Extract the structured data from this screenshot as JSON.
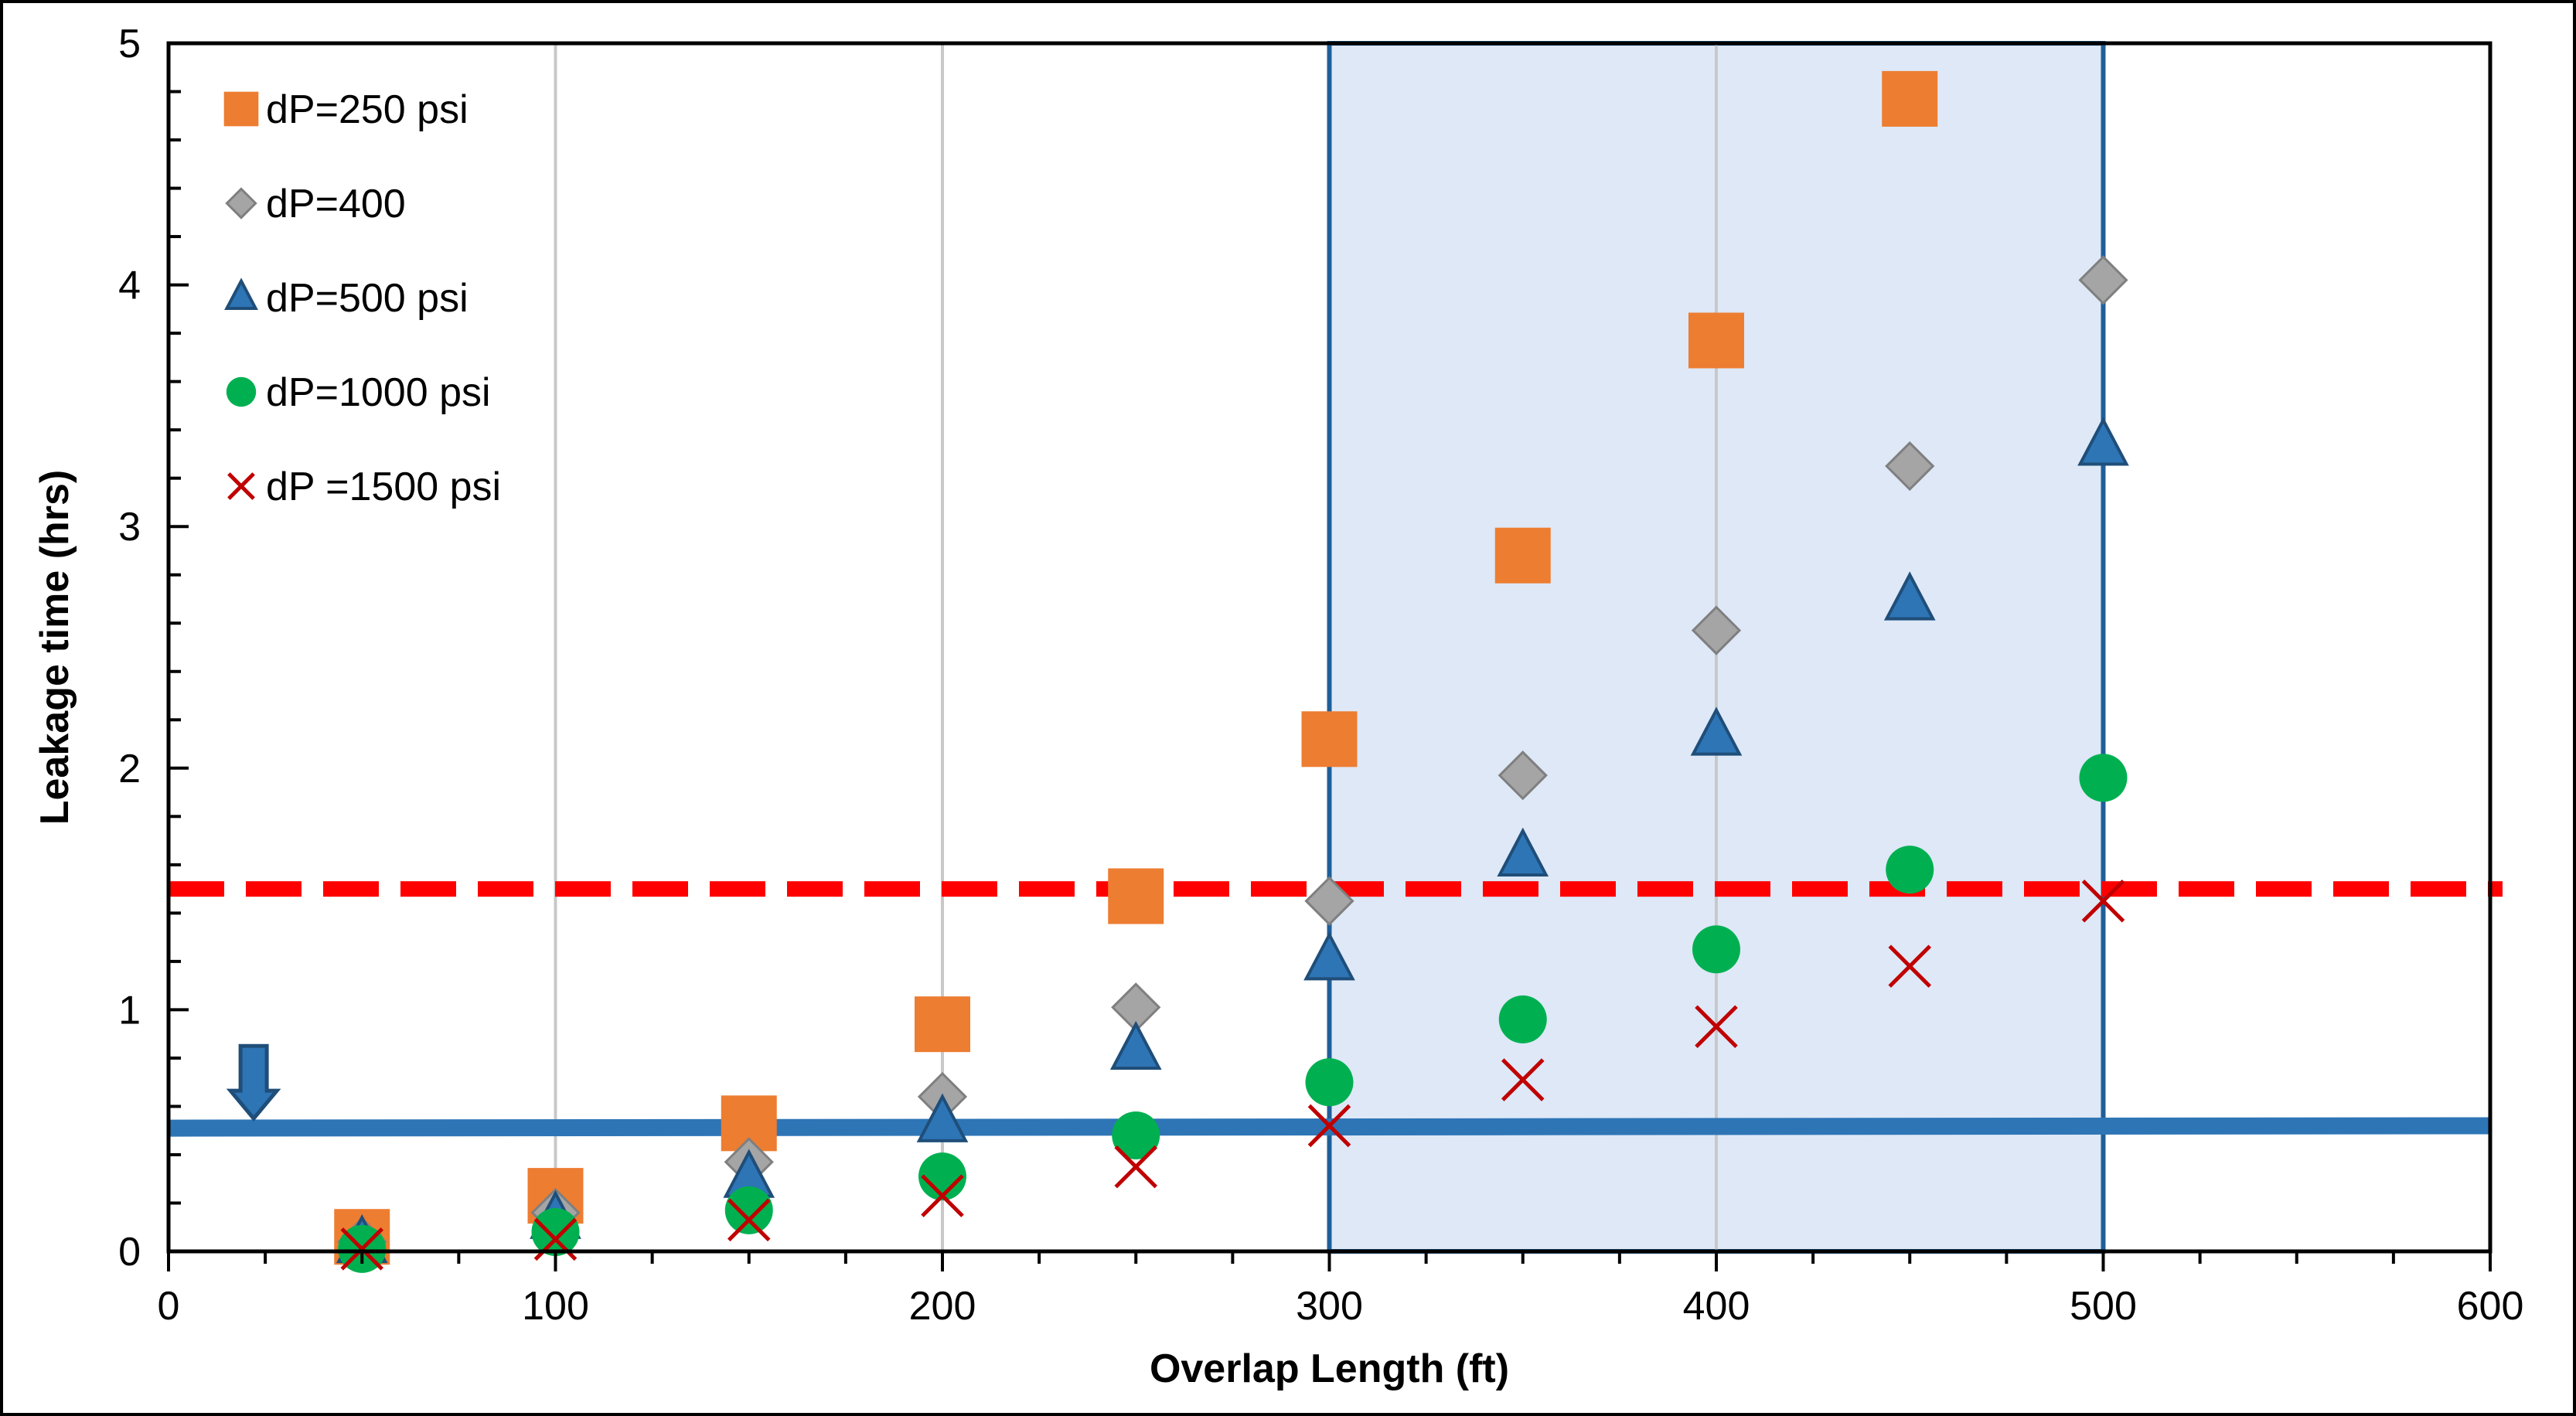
{
  "chart_data": {
    "type": "scatter",
    "title": "",
    "xlabel": "Overlap Length (ft)",
    "ylabel": "Leakage time (hrs)",
    "xlim": [
      0,
      600
    ],
    "ylim": [
      0,
      5
    ],
    "x_ticks": [
      "0",
      "100",
      "200",
      "300",
      "400",
      "500",
      "600"
    ],
    "y_ticks": [
      "0",
      "1",
      "2",
      "3",
      "4",
      "5"
    ],
    "vertical_gridlines_at": [
      100,
      200,
      400
    ],
    "legend_position": "top-left",
    "series": [
      {
        "name": "dP=250 psi",
        "marker": "square",
        "color": "#ED7D31",
        "points": [
          [
            50,
            0.06
          ],
          [
            100,
            0.23
          ],
          [
            150,
            0.53
          ],
          [
            200,
            0.94
          ],
          [
            250,
            1.47
          ],
          [
            300,
            2.12
          ],
          [
            350,
            2.88
          ],
          [
            400,
            3.77
          ],
          [
            450,
            4.77
          ]
        ]
      },
      {
        "name": "dP=400",
        "marker": "diamond",
        "color": "#A5A5A5",
        "points": [
          [
            50,
            0.04
          ],
          [
            100,
            0.16
          ],
          [
            150,
            0.37
          ],
          [
            200,
            0.64
          ],
          [
            250,
            1.01
          ],
          [
            300,
            1.45
          ],
          [
            350,
            1.97
          ],
          [
            400,
            2.57
          ],
          [
            450,
            3.25
          ],
          [
            500,
            4.02
          ]
        ]
      },
      {
        "name": "dP=500 psi",
        "marker": "triangle",
        "color": "#2E75B6",
        "points": [
          [
            50,
            0.03
          ],
          [
            100,
            0.13
          ],
          [
            150,
            0.3
          ],
          [
            200,
            0.53
          ],
          [
            250,
            0.83
          ],
          [
            300,
            1.2
          ],
          [
            350,
            1.63
          ],
          [
            400,
            2.13
          ],
          [
            450,
            2.69
          ],
          [
            500,
            3.33
          ]
        ]
      },
      {
        "name": "dP=1000 psi",
        "marker": "circle",
        "color": "#00B050",
        "points": [
          [
            50,
            0.01
          ],
          [
            100,
            0.08
          ],
          [
            150,
            0.17
          ],
          [
            200,
            0.31
          ],
          [
            250,
            0.48
          ],
          [
            300,
            0.7
          ],
          [
            350,
            0.96
          ],
          [
            400,
            1.25
          ],
          [
            450,
            1.58
          ],
          [
            500,
            1.96
          ]
        ]
      },
      {
        "name": "dP =1500 psi",
        "marker": "x",
        "color": "#C00000",
        "points": [
          [
            50,
            0.01
          ],
          [
            100,
            0.05
          ],
          [
            150,
            0.13
          ],
          [
            200,
            0.23
          ],
          [
            250,
            0.35
          ],
          [
            300,
            0.52
          ],
          [
            350,
            0.71
          ],
          [
            400,
            0.93
          ],
          [
            450,
            1.18
          ],
          [
            500,
            1.45
          ]
        ]
      }
    ],
    "reference_lines": [
      {
        "style": "dashed",
        "color": "#FF0000",
        "y_start": 1.5,
        "y_end": 1.5
      },
      {
        "style": "solid",
        "color": "#2E75B6",
        "y_start": 0.51,
        "y_end": 0.52
      }
    ],
    "shaded_region": {
      "x_from": 300,
      "x_to": 500,
      "fill": "#DEE8F7",
      "stroke": "#1F5F99"
    },
    "arrow": {
      "x": 22,
      "y_from": 0.85,
      "y_to": 0.55,
      "color": "#2E75B6"
    }
  }
}
